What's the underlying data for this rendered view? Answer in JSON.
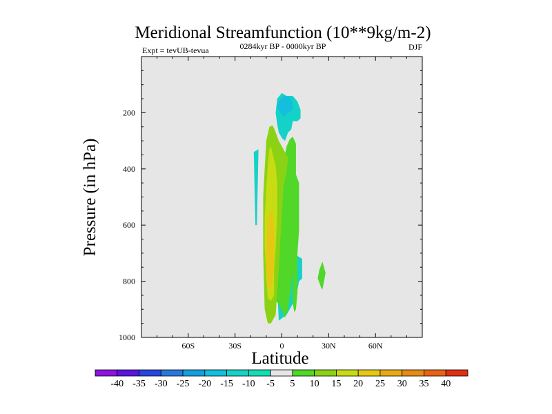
{
  "chart_data": {
    "type": "contour",
    "title": "Meridional Streamfunction (10**9kg/m-2)",
    "left_string": "Expt = tevUB-tevua",
    "center_string": "0284kyr BP - 0000kyr BP",
    "right_string": "DJF",
    "xlabel": "Latitude",
    "ylabel": "Pressure (in hPa)",
    "xlim": [
      -90,
      90
    ],
    "ylim": [
      1000,
      0
    ],
    "x_ticks": [
      {
        "value": -60,
        "label": "60S"
      },
      {
        "value": -30,
        "label": "30S"
      },
      {
        "value": 0,
        "label": "0"
      },
      {
        "value": 30,
        "label": "30N"
      },
      {
        "value": 60,
        "label": "60N"
      }
    ],
    "y_ticks": [
      {
        "value": 200,
        "label": "200"
      },
      {
        "value": 400,
        "label": "400"
      },
      {
        "value": 600,
        "label": "600"
      },
      {
        "value": 800,
        "label": "800"
      },
      {
        "value": 1000,
        "label": "1000"
      }
    ],
    "background_color": "#e6e6e6",
    "colorbar": {
      "labels": [
        "-40",
        "-35",
        "-30",
        "-25",
        "-20",
        "-15",
        "-10",
        "-5",
        "5",
        "10",
        "15",
        "20",
        "25",
        "30",
        "35",
        "40"
      ],
      "colors": [
        "#8c14dc",
        "#5a14dc",
        "#2846dc",
        "#2878dc",
        "#14a0dc",
        "#14bedc",
        "#14d2c8",
        "#14dcb4",
        "#e6e6e6",
        "#50d728",
        "#8cd214",
        "#c8dc14",
        "#e6c814",
        "#e6aa14",
        "#e68c14",
        "#e66414",
        "#dc3214"
      ]
    },
    "regions": [
      {
        "level": "-10 to -5",
        "color": "#14d2c8",
        "points": [
          [
            -4,
            700
          ],
          [
            -2,
            470
          ],
          [
            3,
            510
          ],
          [
            5,
            580
          ],
          [
            8,
            640
          ],
          [
            9,
            670
          ],
          [
            10,
            710
          ],
          [
            13,
            720
          ],
          [
            13,
            790
          ],
          [
            11,
            800
          ],
          [
            9,
            860
          ],
          [
            3,
            920
          ],
          [
            -2,
            940
          ]
        ]
      },
      {
        "level": "-10 to -5",
        "color": "#14d2c8",
        "points": [
          [
            -18,
            340
          ],
          [
            -15,
            330
          ],
          [
            -16,
            600
          ],
          [
            -17,
            600
          ]
        ]
      },
      {
        "level": "-5 to -10",
        "color": "#14d2c8",
        "points": [
          [
            -3,
            150
          ],
          [
            0,
            130
          ],
          [
            3,
            140
          ],
          [
            7,
            140
          ],
          [
            10,
            160
          ],
          [
            12,
            190
          ],
          [
            12,
            220
          ],
          [
            10,
            230
          ],
          [
            7,
            230
          ],
          [
            6,
            260
          ],
          [
            4,
            270
          ],
          [
            2,
            300
          ],
          [
            0,
            290
          ],
          [
            -2,
            270
          ],
          [
            -3,
            240
          ],
          [
            -4,
            200
          ]
        ]
      },
      {
        "level": "-10 to -15",
        "color": "#14bedc",
        "points": [
          [
            -2,
            160
          ],
          [
            1,
            140
          ],
          [
            5,
            145
          ],
          [
            7,
            165
          ],
          [
            7,
            190
          ],
          [
            3,
            205
          ],
          [
            1,
            215
          ],
          [
            -1,
            200
          ],
          [
            -3,
            180
          ]
        ]
      },
      {
        "level": "5 to 10",
        "color": "#50d728",
        "points": [
          [
            -5,
            830
          ],
          [
            -3,
            630
          ],
          [
            -1,
            470
          ],
          [
            1,
            380
          ],
          [
            3,
            320
          ],
          [
            5,
            295
          ],
          [
            7,
            285
          ],
          [
            9,
            310
          ],
          [
            9,
            440
          ],
          [
            8,
            520
          ],
          [
            8,
            620
          ],
          [
            7,
            730
          ],
          [
            6,
            820
          ],
          [
            4,
            900
          ],
          [
            2,
            930
          ],
          [
            0,
            905
          ],
          [
            -2,
            880
          ],
          [
            -4,
            870
          ]
        ]
      },
      {
        "level": "5 to 10",
        "color": "#50d728",
        "points": [
          [
            7,
            430
          ],
          [
            9,
            420
          ],
          [
            11,
            450
          ],
          [
            11,
            620
          ],
          [
            10,
            700
          ],
          [
            10,
            840
          ],
          [
            9,
            900
          ],
          [
            8,
            910
          ],
          [
            7,
            880
          ],
          [
            7,
            800
          ],
          [
            6,
            720
          ],
          [
            7,
            600
          ],
          [
            7,
            500
          ]
        ]
      },
      {
        "level": "5 to 10",
        "color": "#50d728",
        "points": [
          [
            24,
            760
          ],
          [
            26,
            730
          ],
          [
            28,
            770
          ],
          [
            27,
            800
          ],
          [
            26,
            830
          ],
          [
            25,
            820
          ],
          [
            23,
            790
          ]
        ]
      },
      {
        "level": "10 to 15",
        "color": "#8cd214",
        "points": [
          [
            -8,
            250
          ],
          [
            -6,
            245
          ],
          [
            -5,
            255
          ],
          [
            -2,
            300
          ],
          [
            2,
            340
          ],
          [
            4,
            360
          ],
          [
            3,
            410
          ],
          [
            1,
            460
          ],
          [
            0,
            560
          ],
          [
            -1,
            660
          ],
          [
            -2,
            760
          ],
          [
            -4,
            920
          ],
          [
            -7,
            950
          ],
          [
            -9,
            950
          ],
          [
            -11,
            900
          ],
          [
            -12,
            700
          ],
          [
            -12,
            500
          ],
          [
            -11,
            400
          ],
          [
            -10,
            300
          ]
        ]
      },
      {
        "level": "15 to 20",
        "color": "#c8dc14",
        "points": [
          [
            -8,
            330
          ],
          [
            -7,
            320
          ],
          [
            -6,
            345
          ],
          [
            -4,
            390
          ],
          [
            -3,
            450
          ],
          [
            -3,
            560
          ],
          [
            -4,
            680
          ],
          [
            -5,
            760
          ],
          [
            -5,
            850
          ],
          [
            -7,
            870
          ],
          [
            -9,
            860
          ],
          [
            -10,
            780
          ],
          [
            -11,
            680
          ],
          [
            -11,
            580
          ],
          [
            -10,
            470
          ],
          [
            -9,
            390
          ]
        ]
      },
      {
        "level": "20 to 25",
        "color": "#e6c814",
        "points": [
          [
            -8,
            560
          ],
          [
            -6,
            550
          ],
          [
            -5,
            620
          ],
          [
            -5,
            720
          ],
          [
            -6,
            800
          ],
          [
            -7,
            830
          ],
          [
            -9,
            820
          ],
          [
            -10,
            740
          ],
          [
            -10,
            660
          ],
          [
            -9,
            600
          ]
        ]
      }
    ]
  }
}
